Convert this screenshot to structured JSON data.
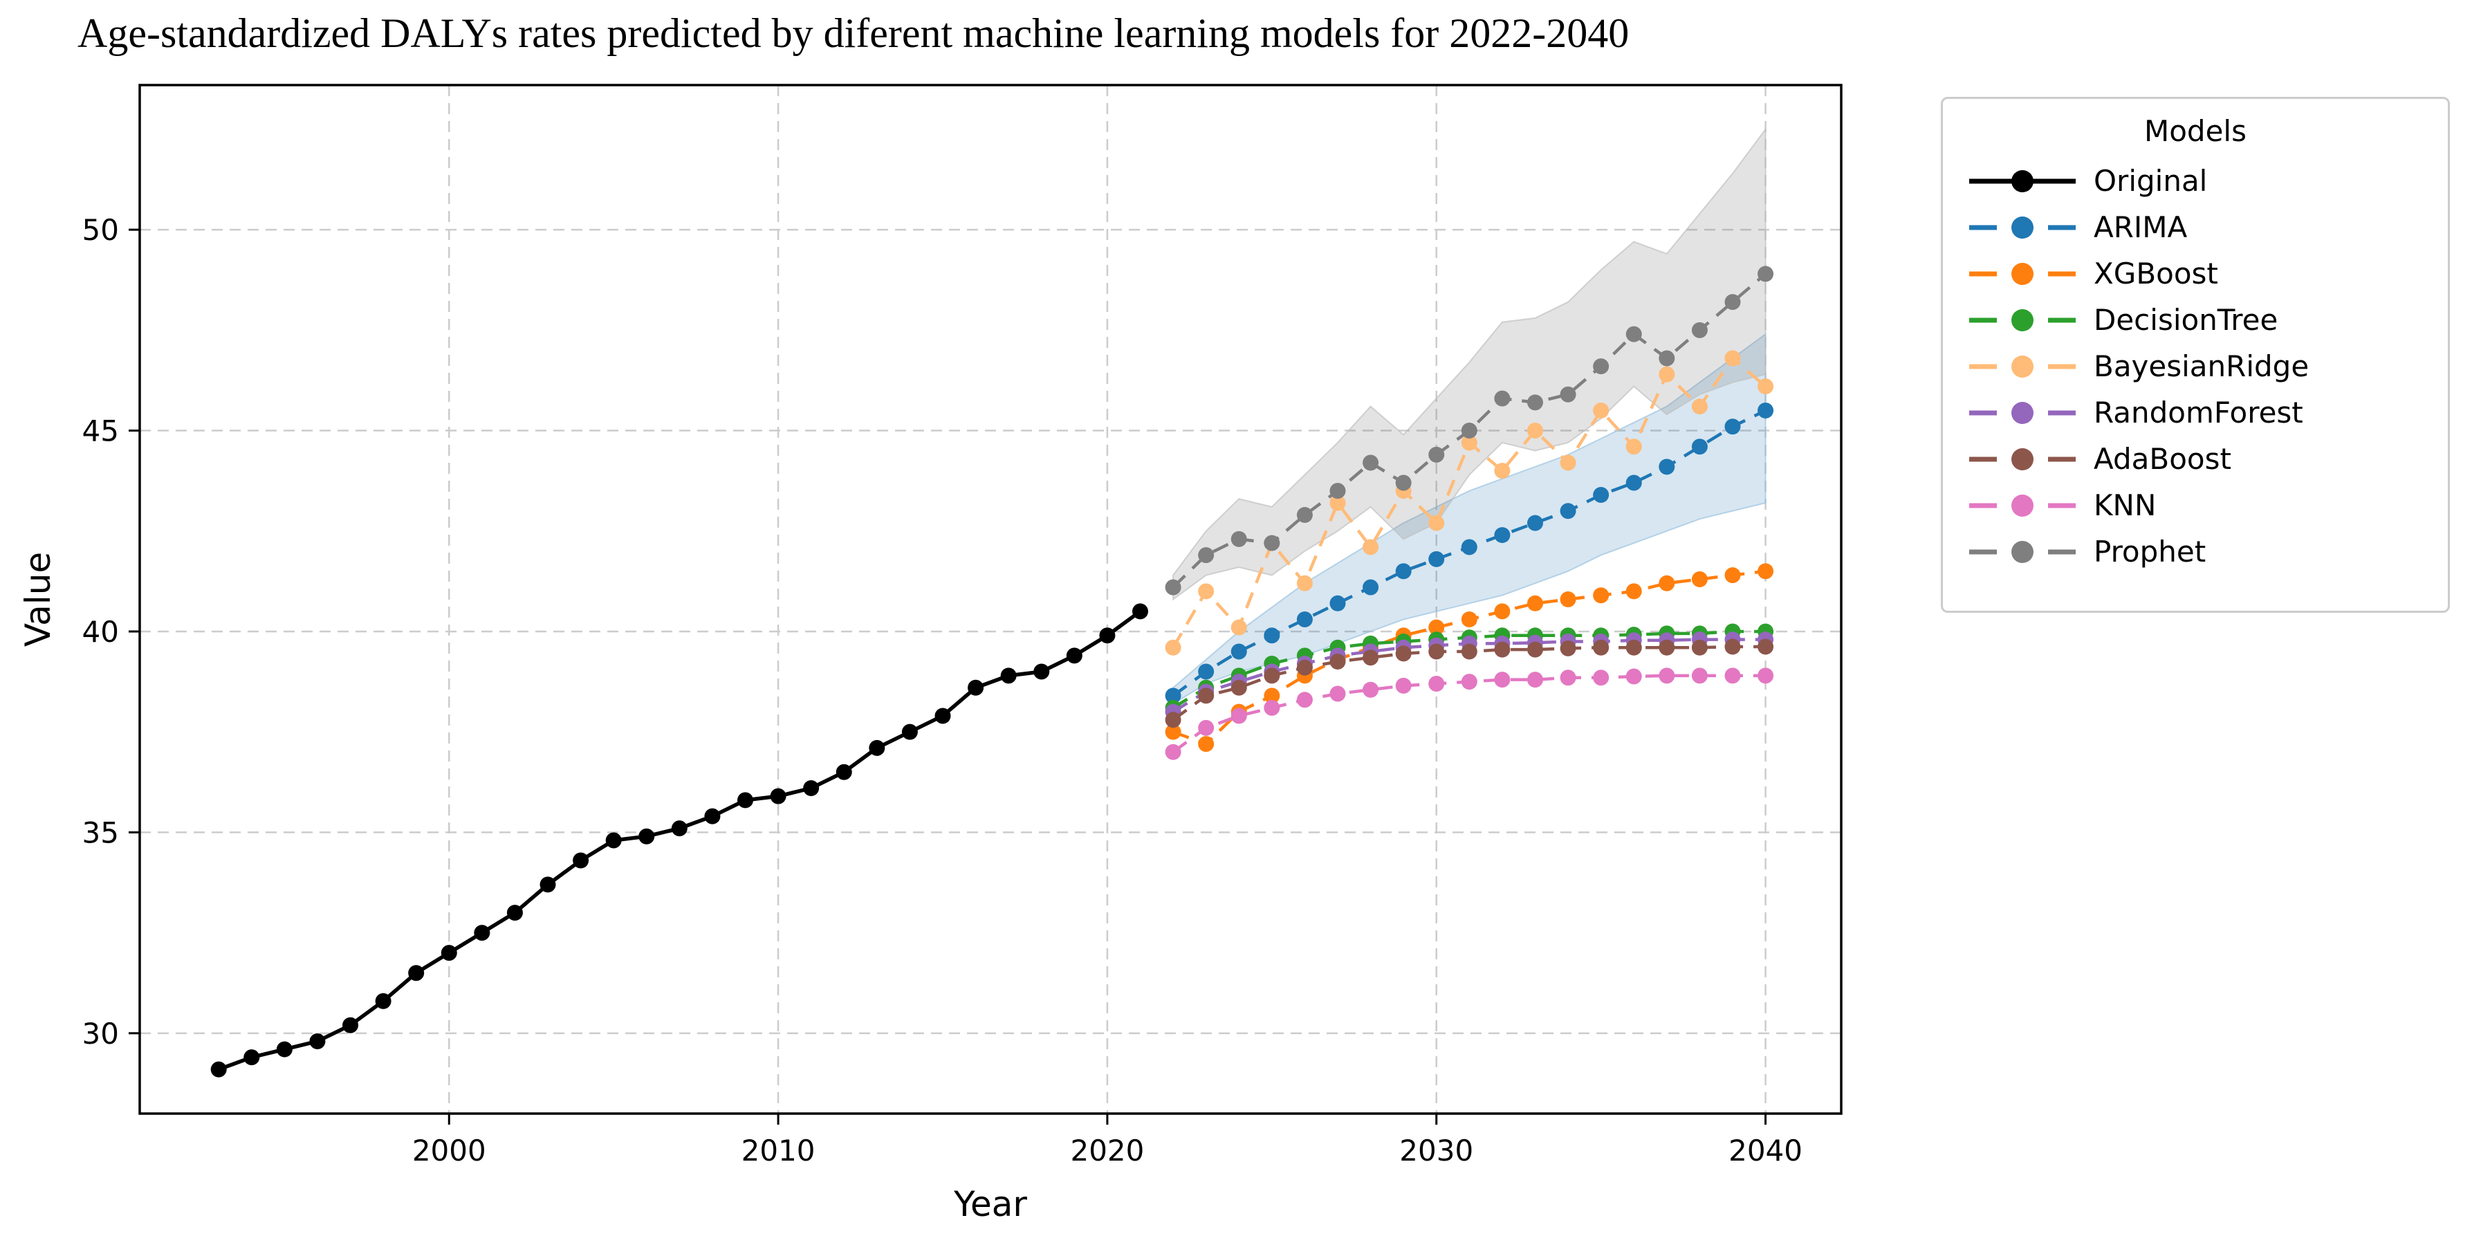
{
  "legend": {
    "title": "Models",
    "items": [
      {
        "label": "Original",
        "color": "#000000",
        "dashed": false
      },
      {
        "label": "ARIMA",
        "color": "#1f77b4",
        "dashed": true
      },
      {
        "label": "XGBoost",
        "color": "#ff7f0e",
        "dashed": true
      },
      {
        "label": "DecisionTree",
        "color": "#2ca02c",
        "dashed": true
      },
      {
        "label": "BayesianRidge",
        "color": "#ffbb78",
        "dashed": true
      },
      {
        "label": "RandomForest",
        "color": "#9467bd",
        "dashed": true
      },
      {
        "label": "AdaBoost",
        "color": "#8c564b",
        "dashed": true
      },
      {
        "label": "KNN",
        "color": "#e377c2",
        "dashed": true
      },
      {
        "label": "Prophet",
        "color": "#7f7f7f",
        "dashed": true
      }
    ]
  },
  "chart_data": {
    "type": "line",
    "title": "Age-standardized DALYs rates predicted by diferent machine learning models for 2022-2040",
    "xlabel": "Year",
    "ylabel": "Value",
    "xlim": [
      1990.6,
      2042.3
    ],
    "ylim": [
      28.0,
      53.6
    ],
    "xticks": [
      2000,
      2010,
      2020,
      2030,
      2040
    ],
    "yticks": [
      30,
      35,
      40,
      45,
      50
    ],
    "grid": true,
    "legend_position": "outside-right",
    "gridline_color": "#cccccc",
    "background_color": "#ffffff",
    "series": [
      {
        "name": "Original",
        "color": "#000000",
        "dashed": false,
        "x_start": 1993,
        "values": [
          29.1,
          29.4,
          29.6,
          29.8,
          30.2,
          30.8,
          31.5,
          32.0,
          32.5,
          33.0,
          33.7,
          34.3,
          34.8,
          34.9,
          35.1,
          35.4,
          35.8,
          35.9,
          36.1,
          36.5,
          37.1,
          37.5,
          37.9,
          38.6,
          38.9,
          39.0,
          39.4,
          39.9,
          40.5
        ]
      },
      {
        "name": "ARIMA",
        "color": "#1f77b4",
        "dashed": true,
        "x_start": 2022,
        "values": [
          38.4,
          39.0,
          39.5,
          39.9,
          40.3,
          40.7,
          41.1,
          41.5,
          41.8,
          42.1,
          42.4,
          42.7,
          43.0,
          43.4,
          43.7,
          44.1,
          44.6,
          45.1,
          45.5
        ],
        "band": {
          "color": "#1f77b4",
          "opacity": 0.18,
          "edge_color": "#9dc3e0",
          "lower": [
            38.2,
            38.7,
            39.0,
            39.2,
            39.4,
            39.7,
            40.0,
            40.3,
            40.5,
            40.7,
            40.9,
            41.2,
            41.5,
            41.9,
            42.2,
            42.5,
            42.8,
            43.0,
            43.2
          ],
          "upper": [
            38.6,
            39.3,
            40.0,
            40.6,
            41.2,
            41.7,
            42.2,
            42.7,
            43.1,
            43.5,
            43.8,
            44.1,
            44.4,
            44.8,
            45.2,
            45.6,
            46.2,
            46.8,
            47.4
          ]
        }
      },
      {
        "name": "XGBoost",
        "color": "#ff7f0e",
        "dashed": true,
        "x_start": 2022,
        "values": [
          37.5,
          37.2,
          38.0,
          38.4,
          38.9,
          39.3,
          39.6,
          39.9,
          40.1,
          40.3,
          40.5,
          40.7,
          40.8,
          40.9,
          41.0,
          41.2,
          41.3,
          41.4,
          41.5
        ]
      },
      {
        "name": "DecisionTree",
        "color": "#2ca02c",
        "dashed": true,
        "x_start": 2022,
        "values": [
          38.1,
          38.6,
          38.9,
          39.2,
          39.4,
          39.6,
          39.7,
          39.75,
          39.8,
          39.85,
          39.9,
          39.9,
          39.9,
          39.9,
          39.92,
          39.95,
          39.95,
          40.0,
          40.0
        ]
      },
      {
        "name": "BayesianRidge",
        "color": "#ffbb78",
        "dashed": true,
        "x_start": 2022,
        "values": [
          39.6,
          41.0,
          40.1,
          42.2,
          41.2,
          43.2,
          42.1,
          43.5,
          42.7,
          44.7,
          44.0,
          45.0,
          44.2,
          45.5,
          44.6,
          46.4,
          45.6,
          46.8,
          46.1
        ]
      },
      {
        "name": "RandomForest",
        "color": "#9467bd",
        "dashed": true,
        "x_start": 2022,
        "values": [
          38.0,
          38.5,
          38.75,
          39.0,
          39.2,
          39.4,
          39.5,
          39.6,
          39.65,
          39.7,
          39.7,
          39.72,
          39.75,
          39.75,
          39.78,
          39.78,
          39.8,
          39.8,
          39.8
        ]
      },
      {
        "name": "AdaBoost",
        "color": "#8c564b",
        "dashed": true,
        "x_start": 2022,
        "values": [
          37.8,
          38.4,
          38.6,
          38.9,
          39.1,
          39.25,
          39.35,
          39.45,
          39.5,
          39.5,
          39.55,
          39.55,
          39.58,
          39.6,
          39.6,
          39.6,
          39.6,
          39.62,
          39.62
        ]
      },
      {
        "name": "KNN",
        "color": "#e377c2",
        "dashed": true,
        "x_start": 2022,
        "values": [
          37.0,
          37.6,
          37.9,
          38.1,
          38.3,
          38.45,
          38.55,
          38.65,
          38.7,
          38.75,
          38.8,
          38.8,
          38.85,
          38.85,
          38.88,
          38.9,
          38.9,
          38.9,
          38.9
        ]
      },
      {
        "name": "Prophet",
        "color": "#7f7f7f",
        "dashed": true,
        "x_start": 2022,
        "values": [
          41.1,
          41.9,
          42.3,
          42.2,
          42.9,
          43.5,
          44.2,
          43.7,
          44.4,
          45.0,
          45.8,
          45.7,
          45.9,
          46.6,
          47.4,
          46.8,
          47.5,
          48.2,
          48.9
        ],
        "band": {
          "color": "#7f7f7f",
          "opacity": 0.22,
          "edge_color": "#c0c0c0",
          "lower": [
            40.8,
            41.4,
            41.6,
            41.4,
            42.0,
            42.5,
            43.1,
            42.3,
            42.7,
            43.9,
            44.7,
            44.5,
            44.7,
            45.3,
            46.1,
            45.4,
            45.9,
            46.2,
            46.4
          ],
          "upper": [
            41.4,
            42.5,
            43.3,
            43.1,
            43.9,
            44.7,
            45.6,
            44.9,
            45.8,
            46.7,
            47.7,
            47.8,
            48.2,
            49.0,
            49.7,
            49.4,
            50.4,
            51.4,
            52.5
          ]
        }
      }
    ]
  }
}
